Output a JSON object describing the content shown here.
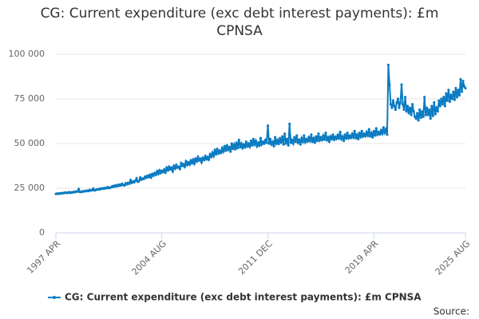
{
  "chart_data": {
    "type": "line",
    "title": "CG: Current expenditure (exc debt interest payments): £m CPNSA",
    "source": "Source:",
    "categories": [
      "1997 APR",
      null,
      null,
      null,
      null,
      null,
      null,
      null,
      null,
      null,
      null,
      null,
      null,
      null,
      null,
      null,
      null,
      null,
      null,
      null,
      null,
      null,
      null,
      null,
      null,
      null,
      null,
      null,
      null,
      null,
      null,
      null,
      null,
      null,
      null,
      null,
      null,
      null,
      null,
      null,
      null,
      null,
      null,
      null,
      null,
      null,
      null,
      null,
      null,
      null,
      null,
      null,
      null,
      null,
      null,
      null,
      null,
      null,
      null,
      null,
      null,
      null,
      null,
      null,
      null,
      null,
      null,
      null,
      null,
      null,
      null,
      null,
      null,
      null,
      null,
      null,
      null,
      null,
      null,
      null,
      null,
      null,
      null,
      null,
      null,
      null,
      null,
      null,
      "2004 AUG",
      null,
      null,
      null,
      null,
      null,
      null,
      null,
      null,
      null,
      null,
      null,
      null,
      null,
      null,
      null,
      null,
      null,
      null,
      null,
      null,
      null,
      null,
      null,
      null,
      null,
      null,
      null,
      null,
      null,
      null,
      null,
      null,
      null,
      null,
      null,
      null,
      null,
      null,
      null,
      null,
      null,
      null,
      null,
      null,
      null,
      null,
      null,
      null,
      null,
      null,
      null,
      null,
      null,
      null,
      null,
      null,
      null,
      null,
      null,
      null,
      null,
      null,
      null,
      null,
      null,
      null,
      null,
      null,
      null,
      null,
      null,
      null,
      null,
      null,
      null,
      null,
      null,
      null,
      null,
      null,
      null,
      null,
      null,
      null,
      null,
      null,
      null,
      "2011 DEC",
      null,
      null,
      null,
      null,
      null,
      null,
      null,
      null,
      null,
      null,
      null,
      null,
      null,
      null,
      null,
      null,
      null,
      null,
      null,
      null,
      null,
      null,
      null,
      null,
      null,
      null,
      null,
      null,
      null,
      null,
      null,
      null,
      null,
      null,
      null,
      null,
      null,
      null,
      null,
      null,
      null,
      null,
      null,
      null,
      null,
      null,
      null,
      null,
      null,
      null,
      null,
      null,
      null,
      null,
      null,
      null,
      null,
      null,
      null,
      null,
      null,
      null,
      null,
      null,
      null,
      null,
      null,
      null,
      null,
      null,
      null,
      null,
      null,
      null,
      null,
      null,
      null,
      null,
      null,
      null,
      null,
      null,
      null,
      null,
      null,
      null,
      null,
      "2019 APR",
      null,
      null,
      null,
      null,
      null,
      null,
      null,
      null,
      null,
      null,
      null,
      null,
      null,
      null,
      null,
      null,
      null,
      null,
      null,
      null,
      null,
      null,
      null,
      null,
      null,
      null,
      null,
      null,
      null,
      null,
      null,
      null,
      null,
      null,
      null,
      null,
      null,
      null,
      null,
      null,
      null,
      null,
      null,
      null,
      null,
      null,
      null,
      null,
      null,
      null,
      null,
      null,
      null,
      null,
      null,
      null,
      null,
      null,
      null,
      null,
      null,
      null,
      null,
      null,
      null,
      null,
      null,
      null,
      null,
      null,
      null,
      null,
      null,
      null,
      null,
      "2025 AUG"
    ],
    "series": [
      {
        "name": "CG: Current expenditure (exc debt interest payments): £m CPNSA",
        "color": "#0b7bc1",
        "values": [
          21800,
          22000,
          21900,
          22100,
          22000,
          22300,
          22200,
          22400,
          22600,
          22300,
          22500,
          22800,
          22400,
          22700,
          22600,
          23000,
          22800,
          23200,
          23100,
          24500,
          22900,
          22900,
          23200,
          23100,
          23500,
          23300,
          23600,
          23400,
          24000,
          23700,
          23900,
          24800,
          23800,
          24000,
          24300,
          24500,
          24200,
          24800,
          24600,
          25000,
          24700,
          25200,
          25000,
          25600,
          25100,
          25300,
          25500,
          26200,
          25700,
          26500,
          26000,
          26800,
          26300,
          27000,
          26500,
          27500,
          26800,
          26500,
          27800,
          27200,
          28000,
          27500,
          29500,
          28000,
          28800,
          28300,
          29200,
          30500,
          28600,
          29000,
          31000,
          29800,
          30500,
          30200,
          31500,
          30800,
          32000,
          31200,
          32500,
          31000,
          33000,
          32000,
          33500,
          32500,
          34500,
          33000,
          35000,
          33500,
          34800,
          34000,
          35500,
          33800,
          36500,
          35000,
          37000,
          35500,
          36500,
          34500,
          37500,
          36000,
          38000,
          36500,
          37000,
          35800,
          39000,
          37500,
          38500,
          37000,
          40000,
          38000,
          39500,
          38200,
          40500,
          39000,
          41000,
          38800,
          41500,
          40000,
          42500,
          40500,
          41500,
          39500,
          42000,
          40800,
          43000,
          41200,
          42500,
          41000,
          44000,
          42500,
          45000,
          43000,
          46500,
          44000,
          47000,
          44500,
          46000,
          44800,
          47500,
          45500,
          48500,
          46000,
          49000,
          46500,
          48000,
          45500,
          50000,
          47000,
          49500,
          46800,
          50500,
          47500,
          52000,
          48000,
          50000,
          47500,
          49500,
          48000,
          51000,
          48500,
          50000,
          48200,
          51500,
          49000,
          52500,
          49500,
          51500,
          48500,
          50500,
          49000,
          53000,
          49500,
          51000,
          50000,
          52000,
          50500,
          60000,
          50000,
          52500,
          49500,
          51000,
          48500,
          53500,
          50000,
          52000,
          49800,
          53000,
          50500,
          54000,
          49500,
          55500,
          50000,
          52500,
          49000,
          61000,
          50500,
          52000,
          50000,
          53500,
          51000,
          54500,
          50500,
          52000,
          49500,
          53000,
          51000,
          54500,
          50800,
          52500,
          51200,
          53500,
          51500,
          55000,
          51000,
          53000,
          50500,
          54000,
          51500,
          55500,
          51800,
          53500,
          52000,
          54500,
          52200,
          56000,
          52000,
          53500,
          51000,
          54000,
          52500,
          55000,
          52200,
          53800,
          52600,
          54800,
          53000,
          56500,
          52500,
          54000,
          51500,
          55000,
          52800,
          56000,
          53000,
          54500,
          53200,
          55500,
          53500,
          57000,
          53000,
          55000,
          52500,
          56000,
          53500,
          57000,
          54000,
          55500,
          54200,
          56500,
          54500,
          58000,
          54000,
          56000,
          53500,
          57000,
          54500,
          58500,
          55000,
          56500,
          55200,
          57500,
          55500,
          59000,
          56000,
          58000,
          55000,
          94000,
          83000,
          72000,
          70000,
          74000,
          71000,
          69000,
          73000,
          75000,
          70000,
          73000,
          83000,
          72000,
          69000,
          76000,
          68000,
          71000,
          67000,
          70000,
          66000,
          72000,
          68000,
          65000,
          64000,
          67000,
          63000,
          69000,
          64500,
          68000,
          65000,
          76000,
          66000,
          70000,
          66000,
          69000,
          64000,
          71000,
          65500,
          73000,
          66500,
          70000,
          68000,
          74000,
          71000,
          75000,
          72000,
          76000,
          71000,
          78000,
          74000,
          80000,
          73500,
          77000,
          75000,
          79000,
          74500,
          81000,
          76000,
          80000,
          77000,
          86000,
          79000,
          85000,
          82000,
          81000
        ]
      }
    ],
    "ylim": [
      0,
      100000
    ],
    "yticks": [
      0,
      {
        "value": 25000,
        "label": "25 000"
      },
      {
        "value": 50000,
        "label": "50 000"
      },
      {
        "value": 75000,
        "label": "75 000"
      },
      {
        "value": 100000,
        "label": "100 000"
      }
    ],
    "grid": true,
    "legend": "bottom"
  }
}
